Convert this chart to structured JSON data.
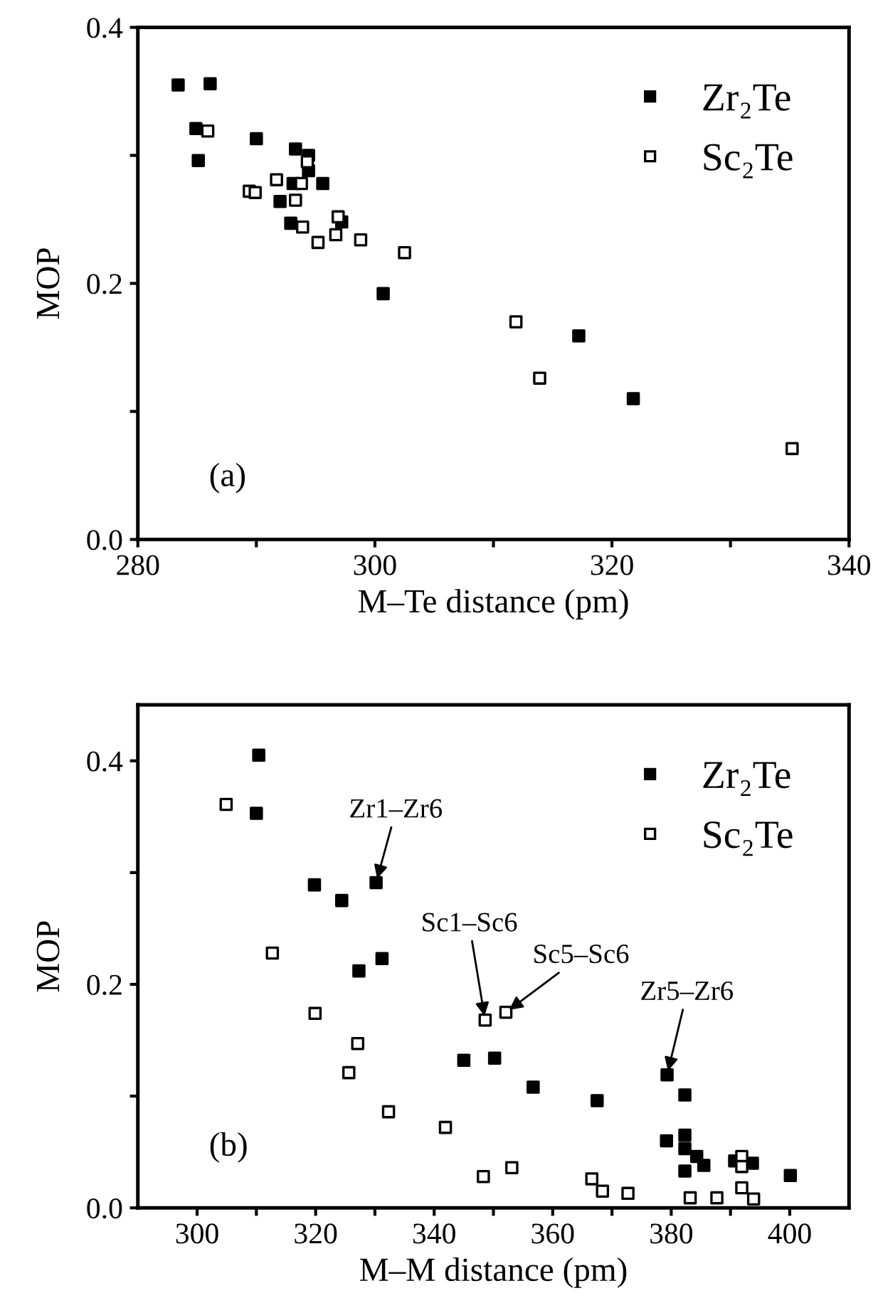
{
  "chart_data": [
    {
      "type": "scatter",
      "xlabel": "M–Te distance (pm)",
      "ylabel": "MOP",
      "xlim": [
        280,
        340
      ],
      "xticks": [
        280,
        {
          "value": 290,
          "label": null
        },
        300,
        {
          "value": 310,
          "label": null
        },
        320,
        {
          "value": 330,
          "label": null
        },
        340
      ],
      "ylim": [
        0.0,
        0.4
      ],
      "yticks": [
        {
          "value": 0,
          "label": "0.0"
        },
        {
          "value": 0.1,
          "label": null
        },
        {
          "value": 0.2,
          "label": "0.2"
        },
        {
          "value": 0.3,
          "label": null
        },
        {
          "value": 0.4,
          "label": "0.4"
        }
      ],
      "marker": "square",
      "legend": "top right",
      "grid": false,
      "annotations": [
        "(a)"
      ],
      "series": [
        {
          "name": "Zr₂Te",
          "color": "#000000",
          "x": [
            283.4,
            286.1,
            284.9,
            285.1,
            290.0,
            293.3,
            294.4,
            294.4,
            293.1,
            295.6,
            292.0,
            292.9,
            297.2,
            300.7,
            317.2,
            321.8
          ],
          "values": [
            0.355,
            0.356,
            0.321,
            0.296,
            0.313,
            0.305,
            0.3,
            0.288,
            0.278,
            0.278,
            0.264,
            0.247,
            0.248,
            0.192,
            0.159,
            0.11
          ]
        },
        {
          "name": "Sc₂Te",
          "color": "#000000",
          "x": [
            285.9,
            289.4,
            289.9,
            291.7,
            293.3,
            293.8,
            294.3,
            293.9,
            295.2,
            296.7,
            296.9,
            298.8,
            302.5,
            311.9,
            313.9,
            335.2
          ],
          "values": [
            0.319,
            0.272,
            0.271,
            0.281,
            0.265,
            0.278,
            0.295,
            0.244,
            0.232,
            0.238,
            0.252,
            0.234,
            0.224,
            0.17,
            0.126,
            0.071
          ]
        }
      ]
    },
    {
      "type": "scatter",
      "xlabel": "M–M distance (pm)",
      "ylabel": "MOP",
      "xlim": [
        290,
        410
      ],
      "xticks": [
        300,
        {
          "value": 310,
          "label": null
        },
        320,
        {
          "value": 330,
          "label": null
        },
        340,
        {
          "value": 350,
          "label": null
        },
        360,
        {
          "value": 370,
          "label": null
        },
        380,
        {
          "value": 390,
          "label": null
        },
        400
      ],
      "ylim": [
        0.0,
        0.45
      ],
      "yticks": [
        {
          "value": 0,
          "label": "0.0"
        },
        {
          "value": 0.1,
          "label": null
        },
        {
          "value": 0.2,
          "label": "0.2"
        },
        {
          "value": 0.3,
          "label": null
        },
        {
          "value": 0.4,
          "label": "0.4"
        }
      ],
      "marker": "square",
      "legend": "top right",
      "grid": false,
      "annotations": [
        "(b)",
        {
          "text": "Zr1–Zr6",
          "x": 330.2,
          "y": 0.291
        },
        {
          "text": "Sc1–Sc6",
          "x": 348.6,
          "y": 0.168
        },
        {
          "text": "Sc5–Sc6",
          "x": 352.1,
          "y": 0.175
        },
        {
          "text": "Zr5–Zr6",
          "x": 379.3,
          "y": 0.119
        }
      ],
      "series": [
        {
          "name": "Zr₂Te",
          "color": "#000000",
          "x": [
            310.4,
            310.0,
            319.8,
            324.4,
            330.2,
            331.2,
            327.3,
            345.0,
            350.2,
            356.7,
            367.5,
            379.3,
            382.3,
            379.2,
            382.3,
            382.3,
            384.3,
            385.5,
            382.3,
            390.7,
            393.7,
            400.1
          ],
          "values": [
            0.405,
            0.353,
            0.289,
            0.275,
            0.291,
            0.223,
            0.212,
            0.132,
            0.134,
            0.108,
            0.096,
            0.119,
            0.101,
            0.06,
            0.065,
            0.053,
            0.046,
            0.038,
            0.033,
            0.042,
            0.04,
            0.029
          ]
        },
        {
          "name": "Sc₂Te",
          "color": "#000000",
          "x": [
            304.9,
            312.7,
            319.9,
            327.1,
            325.6,
            332.3,
            341.9,
            348.6,
            352.1,
            348.3,
            353.1,
            366.6,
            368.4,
            372.7,
            383.2,
            387.7,
            391.9,
            391.9,
            391.9,
            393.9
          ],
          "values": [
            0.361,
            0.228,
            0.174,
            0.147,
            0.121,
            0.086,
            0.072,
            0.168,
            0.175,
            0.028,
            0.036,
            0.026,
            0.015,
            0.013,
            0.009,
            0.009,
            0.046,
            0.037,
            0.018,
            0.008
          ]
        }
      ]
    }
  ]
}
